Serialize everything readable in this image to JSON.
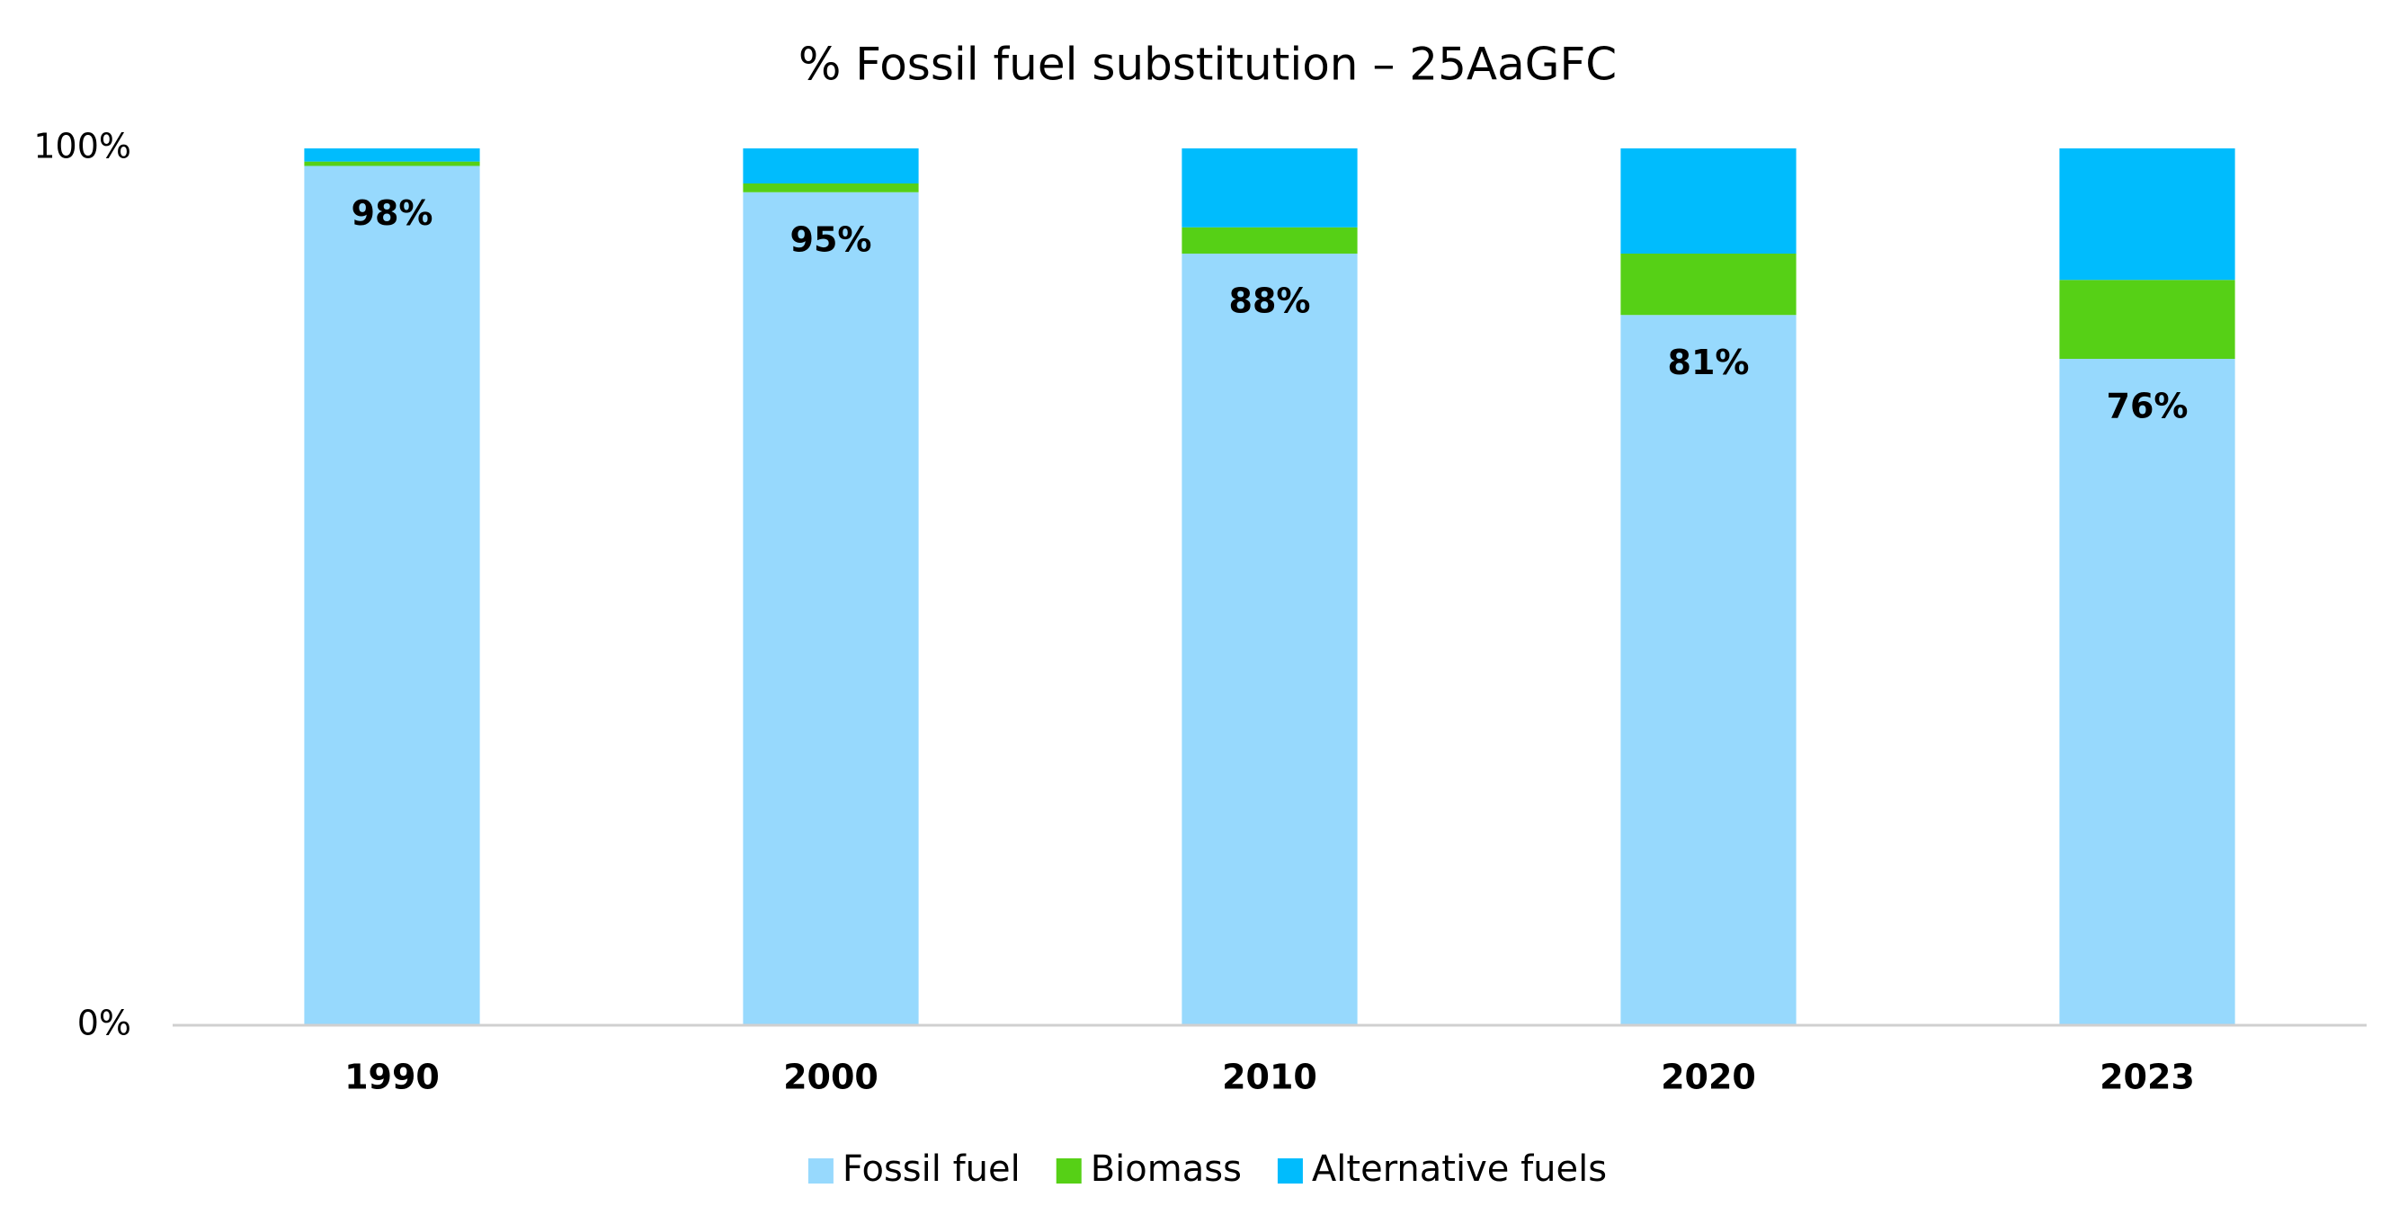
{
  "chart_data": {
    "type": "stacked_bar",
    "title": "% Fossil fuel substitution – 25AaGFC",
    "categories": [
      "1990",
      "2000",
      "2010",
      "2020",
      "2023"
    ],
    "series": [
      {
        "name": "Fossil fuel",
        "color": "#97d9fd",
        "values": [
          98,
          95,
          88,
          81,
          76
        ],
        "value_labels": [
          "98%",
          "95%",
          "88%",
          "81%",
          "76%"
        ]
      },
      {
        "name": "Biomass",
        "color": "#56d016",
        "values": [
          0.5,
          1,
          3,
          7,
          9
        ]
      },
      {
        "name": "Alternative fuels",
        "color": "#00bcfd",
        "values": [
          1.5,
          4,
          9,
          12,
          15
        ]
      }
    ],
    "ylim": [
      0,
      100
    ],
    "yticks": [
      {
        "value": 0,
        "label": "0%"
      },
      {
        "value": 100,
        "label": "100%"
      }
    ],
    "legend": "bottom"
  }
}
